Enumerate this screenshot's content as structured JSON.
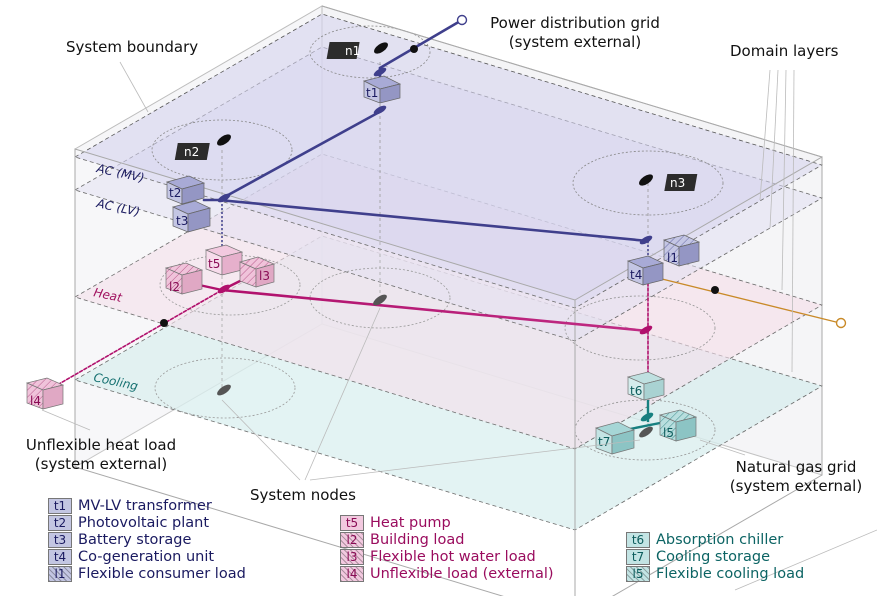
{
  "labels": {
    "system_boundary": "System boundary",
    "domain_layers": "Domain layers",
    "system_nodes": "System nodes",
    "grid_top_1": "Power distribution grid",
    "grid_top_2": "(system external)",
    "gas_1": "Natural gas grid",
    "gas_2": "(system external)",
    "heat_load_1": "Unflexible heat load",
    "heat_load_2": "(system external)"
  },
  "layers": {
    "ac_mv": "AC (MV)",
    "ac_lv": "AC (LV)",
    "heat": "Heat",
    "cooling": "Cooling"
  },
  "nodes": {
    "n1": "n1",
    "n2": "n2",
    "n3": "n3"
  },
  "boxes": {
    "t1": "t1",
    "t2": "t2",
    "t3": "t3",
    "t4": "t4",
    "t5": "t5",
    "t6": "t6",
    "t7": "t7",
    "l1": "l1",
    "l2": "l2",
    "l3": "l3",
    "l4": "l4",
    "l5": "l5"
  },
  "legend": {
    "col1": [
      {
        "code": "t1",
        "text": "MV-LV transformer"
      },
      {
        "code": "t2",
        "text": "Photovoltaic plant"
      },
      {
        "code": "t3",
        "text": "Battery storage"
      },
      {
        "code": "t4",
        "text": "Co-generation unit"
      },
      {
        "code": "l1",
        "text": "Flexible consumer load"
      }
    ],
    "col2": [
      {
        "code": "t5",
        "text": "Heat pump"
      },
      {
        "code": "l2",
        "text": "Building load"
      },
      {
        "code": "l3",
        "text": "Flexible hot water load"
      },
      {
        "code": "l4",
        "text": "Unflexible load (external)"
      }
    ],
    "col3": [
      {
        "code": "t6",
        "text": "Absorption chiller"
      },
      {
        "code": "t7",
        "text": "Cooling storage"
      },
      {
        "code": "l5",
        "text": "Flexible cooling load"
      }
    ]
  },
  "colors": {
    "electric": "#3f3f8c",
    "heat": "#b0106c",
    "cooling": "#178080",
    "gas": "#c98a28"
  }
}
